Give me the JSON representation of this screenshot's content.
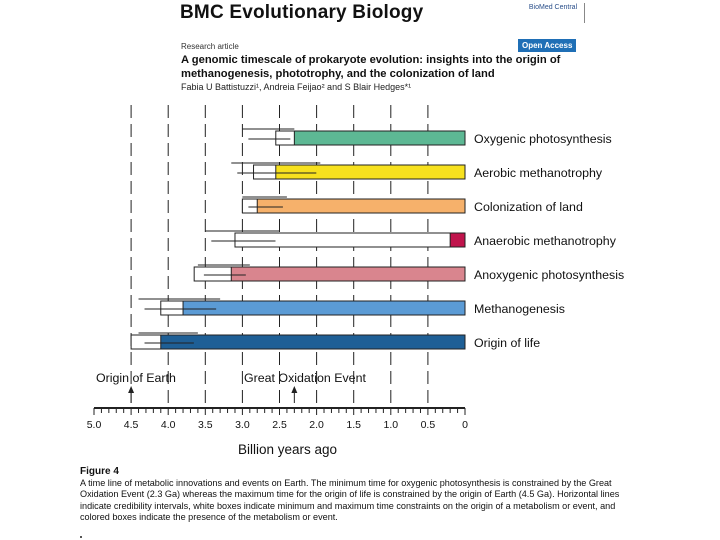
{
  "header": {
    "journal_title": "BMC Evolutionary Biology",
    "publisher_logo_text": "BioMed Central",
    "article_type": "Research article",
    "open_access_label": "Open Access",
    "article_title": "A genomic timescale of prokaryote evolution: insights into the origin of methanogenesis, phototrophy, and the colonization of land",
    "authors": "Fabia U Battistuzzi¹, Andreia Feijao² and S Blair Hedges*¹"
  },
  "chart_data": {
    "type": "timeline",
    "xlabel": "Billion years ago",
    "x_ticks": [
      "5.0",
      "4.5",
      "4.0",
      "3.5",
      "3.0",
      "2.5",
      "2.0",
      "1.5",
      "1.0",
      "0.5",
      "0"
    ],
    "xlim": [
      5.0,
      0
    ],
    "events": [
      {
        "name": "Oxygenic photosynthesis",
        "color": "#5db894",
        "min_time_ga": 0,
        "colored_start_ga": 2.3,
        "box_start_ga": 2.55,
        "ci_ga": [
          3.0,
          2.3
        ]
      },
      {
        "name": "Aerobic methanotrophy",
        "color": "#f7e11e",
        "min_time_ga": 0,
        "colored_start_ga": 2.55,
        "box_start_ga": 2.85,
        "ci_ga": [
          3.15,
          1.95
        ]
      },
      {
        "name": "Colonization of land",
        "color": "#f6b16b",
        "min_time_ga": 0,
        "colored_start_ga": 2.8,
        "box_start_ga": 3.0,
        "ci_ga": [
          3.0,
          2.4
        ]
      },
      {
        "name": "Anaerobic methanotrophy",
        "color": "#c0144c",
        "min_time_ga": 0,
        "colored_start_ga": 0.2,
        "box_start_ga": 3.1,
        "ci_ga": [
          3.5,
          2.5
        ]
      },
      {
        "name": "Anoxygenic photosynthesis",
        "color": "#d9858e",
        "min_time_ga": 0,
        "colored_start_ga": 3.15,
        "box_start_ga": 3.65,
        "ci_ga": [
          3.6,
          2.9
        ]
      },
      {
        "name": "Methanogenesis",
        "color": "#5b9bd5",
        "min_time_ga": 0,
        "colored_start_ga": 3.8,
        "box_start_ga": 4.1,
        "ci_ga": [
          4.4,
          3.3
        ]
      },
      {
        "name": "Origin of life",
        "color": "#1e5f96",
        "min_time_ga": 0,
        "colored_start_ga": 4.1,
        "box_start_ga": 4.5,
        "ci_ga": [
          4.4,
          3.6
        ]
      }
    ],
    "annotations": [
      {
        "label": "Origin of Earth",
        "at_ga": 4.5
      },
      {
        "label": "Great Oxidation Event",
        "at_ga": 2.3
      }
    ],
    "dashed_gridlines_ga": [
      4.5,
      4.0,
      3.5,
      3.0,
      2.5,
      2.0,
      1.5,
      1.0,
      0.5
    ]
  },
  "caption": {
    "label": "Figure 4",
    "text": "A time line of metabolic innovations and events on Earth. The minimum time for oxygenic photosynthesis is constrained by the Great Oxidation Event (2.3 Ga) whereas the maximum time for the origin of life is constrained by the origin of Earth (4.5 Ga). Horizontal lines indicate credibility intervals, white boxes indicate minimum and maximum time constraints on the origin of a metabolism or event, and colored boxes indicate the presence of the metabolism or event."
  }
}
